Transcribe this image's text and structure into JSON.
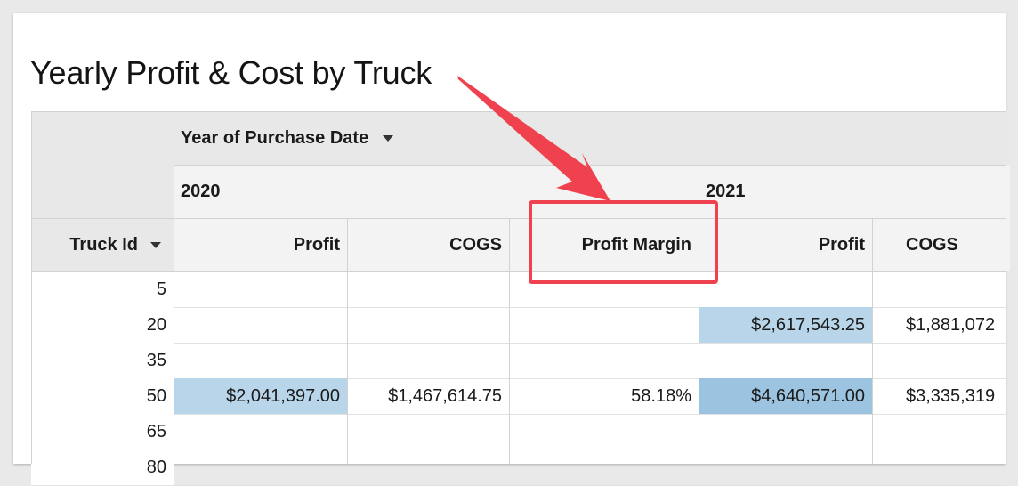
{
  "title": "Yearly Profit & Cost by Truck",
  "pivot": {
    "group_header": "Year of Purchase Date",
    "row_header": "Truck Id",
    "years": [
      "2020",
      "2021"
    ],
    "columns": [
      "Profit",
      "COGS",
      "Profit Margin",
      "Profit",
      "COGS"
    ],
    "rows": [
      {
        "id": "5",
        "cells": [
          "",
          "",
          "",
          "",
          ""
        ]
      },
      {
        "id": "20",
        "cells": [
          "",
          "",
          "",
          "$2,617,543.25",
          "$1,881,072"
        ]
      },
      {
        "id": "35",
        "cells": [
          "",
          "",
          "",
          "",
          ""
        ]
      },
      {
        "id": "50",
        "cells": [
          "$2,041,397.00",
          "$1,467,614.75",
          "58.18%",
          "$4,640,571.00",
          "$3,335,319"
        ]
      },
      {
        "id": "65",
        "cells": [
          "",
          "",
          "",
          "",
          ""
        ]
      },
      {
        "id": "80",
        "cells": [
          "",
          "",
          "",
          "",
          ""
        ]
      }
    ]
  },
  "colors": {
    "annotation": "#f0414e",
    "highlight_light": "#b8d5ea",
    "highlight_medium": "#9cc3e0"
  }
}
